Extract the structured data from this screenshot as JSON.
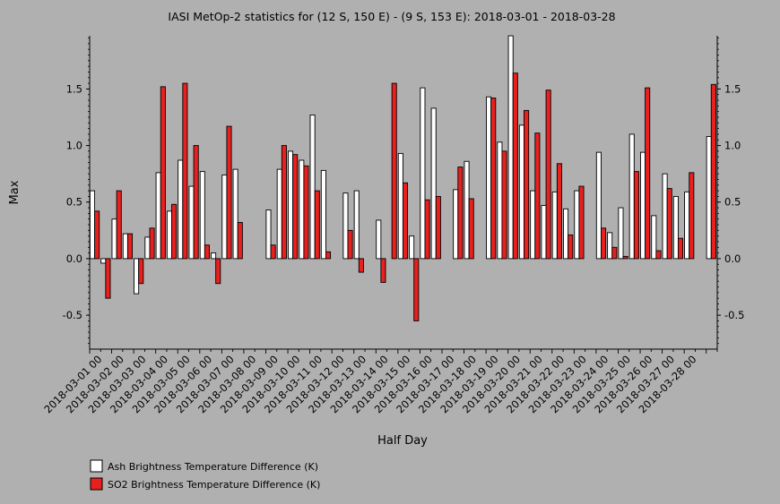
{
  "chart_data": {
    "type": "bar",
    "title": "IASI MetOp-2 statistics for (12 S, 150 E) - (9 S, 153 E): 2018-03-01 - 2018-03-28",
    "xlabel": "Half Day",
    "ylabel": "Max",
    "ylim": [
      -0.8,
      1.97
    ],
    "yticks": [
      -0.5,
      0.0,
      0.5,
      1.0,
      1.5
    ],
    "ytick_labels": [
      "-0.5",
      "0.0",
      "0.5",
      "1.0",
      "1.5"
    ],
    "grid": false,
    "legend_position": "bottom-left",
    "xtick_labels": [
      "2018-03-01 00",
      "2018-03-02 00",
      "2018-03-03 00",
      "2018-03-04 00",
      "2018-03-05 00",
      "2018-03-06 00",
      "2018-03-07 00",
      "2018-03-08 00",
      "2018-03-09 00",
      "2018-03-10 00",
      "2018-03-11 00",
      "2018-03-12 00",
      "2018-03-13 00",
      "2018-03-14 00",
      "2018-03-15 00",
      "2018-03-16 00",
      "2018-03-17 00",
      "2018-03-18 00",
      "2018-03-19 00",
      "2018-03-20 00",
      "2018-03-21 00",
      "2018-03-22 00",
      "2018-03-23 00",
      "2018-03-24 00",
      "2018-03-25 00",
      "2018-03-26 00",
      "2018-03-27 00",
      "2018-03-28 00"
    ],
    "series": [
      {
        "name": "Ash Brightness Temperature Difference (K)",
        "color": "#ffffff",
        "values": [
          0.6,
          -0.04,
          0.35,
          0.22,
          -0.31,
          0.19,
          0.76,
          0.42,
          0.87,
          0.64,
          0.77,
          0.05,
          0.74,
          0.79,
          null,
          null,
          0.43,
          0.79,
          0.95,
          0.87,
          1.27,
          0.78,
          null,
          0.58,
          0.6,
          null,
          0.34,
          null,
          0.93,
          0.2,
          1.51,
          1.33,
          null,
          0.61,
          0.86,
          null,
          1.43,
          1.03,
          1.97,
          1.18,
          0.6,
          0.47,
          0.59,
          0.44,
          0.6,
          null,
          0.94,
          0.23,
          0.45,
          1.1,
          0.94,
          0.38,
          0.75,
          0.55,
          0.59,
          null,
          1.08
        ],
        "null_note": ""
      },
      {
        "name": "SO2 Brightness Temperature Difference (K)",
        "color": "#e8201e",
        "values": [
          0.42,
          -0.35,
          0.6,
          0.22,
          -0.22,
          0.27,
          1.52,
          0.48,
          1.55,
          1.0,
          0.12,
          -0.22,
          1.17,
          0.32,
          null,
          null,
          0.12,
          1.0,
          0.92,
          0.82,
          0.6,
          0.06,
          null,
          0.25,
          -0.12,
          null,
          -0.21,
          1.55,
          0.67,
          -0.55,
          0.52,
          0.55,
          null,
          0.81,
          0.53,
          null,
          1.42,
          0.95,
          1.64,
          1.31,
          1.11,
          1.49,
          0.84,
          0.21,
          0.64,
          null,
          0.27,
          0.1,
          0.02,
          0.77,
          1.51,
          0.07,
          0.62,
          0.18,
          0.76,
          null,
          1.54
        ]
      }
    ]
  }
}
